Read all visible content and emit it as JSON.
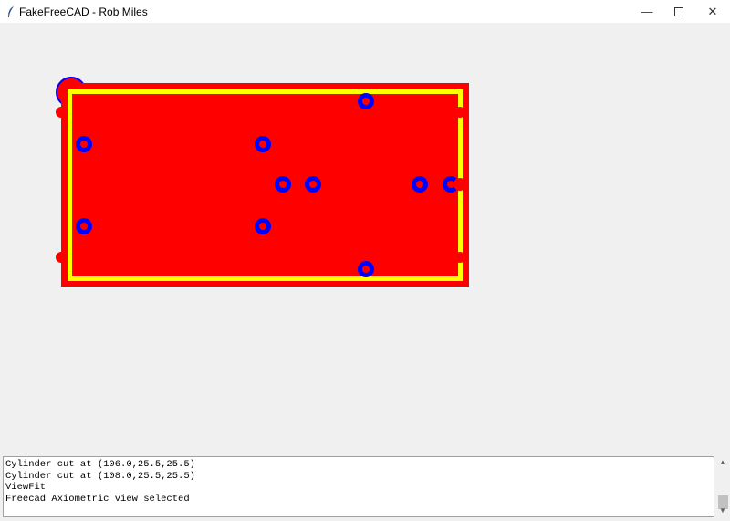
{
  "window": {
    "title": "FakeFreeCAD - Rob Miles",
    "minimize_icon": "minimize-icon",
    "maximize_icon": "maximize-icon",
    "close_icon": "close-icon"
  },
  "colors": {
    "part_fill": "#ff0000",
    "outline": "#ffff00",
    "cylinder_ring": "#0000ff",
    "background": "#f0f0f0"
  },
  "log": {
    "lines": [
      "Cylinder cut at (106.0,25.5,25.5)",
      "Cylinder cut at (108.0,25.5,25.5)",
      "ViewFit",
      "Freecad Axiometric view selected"
    ]
  },
  "scrollbar": {
    "up_icon": "chevron-up-icon",
    "down_icon": "chevron-down-icon"
  }
}
